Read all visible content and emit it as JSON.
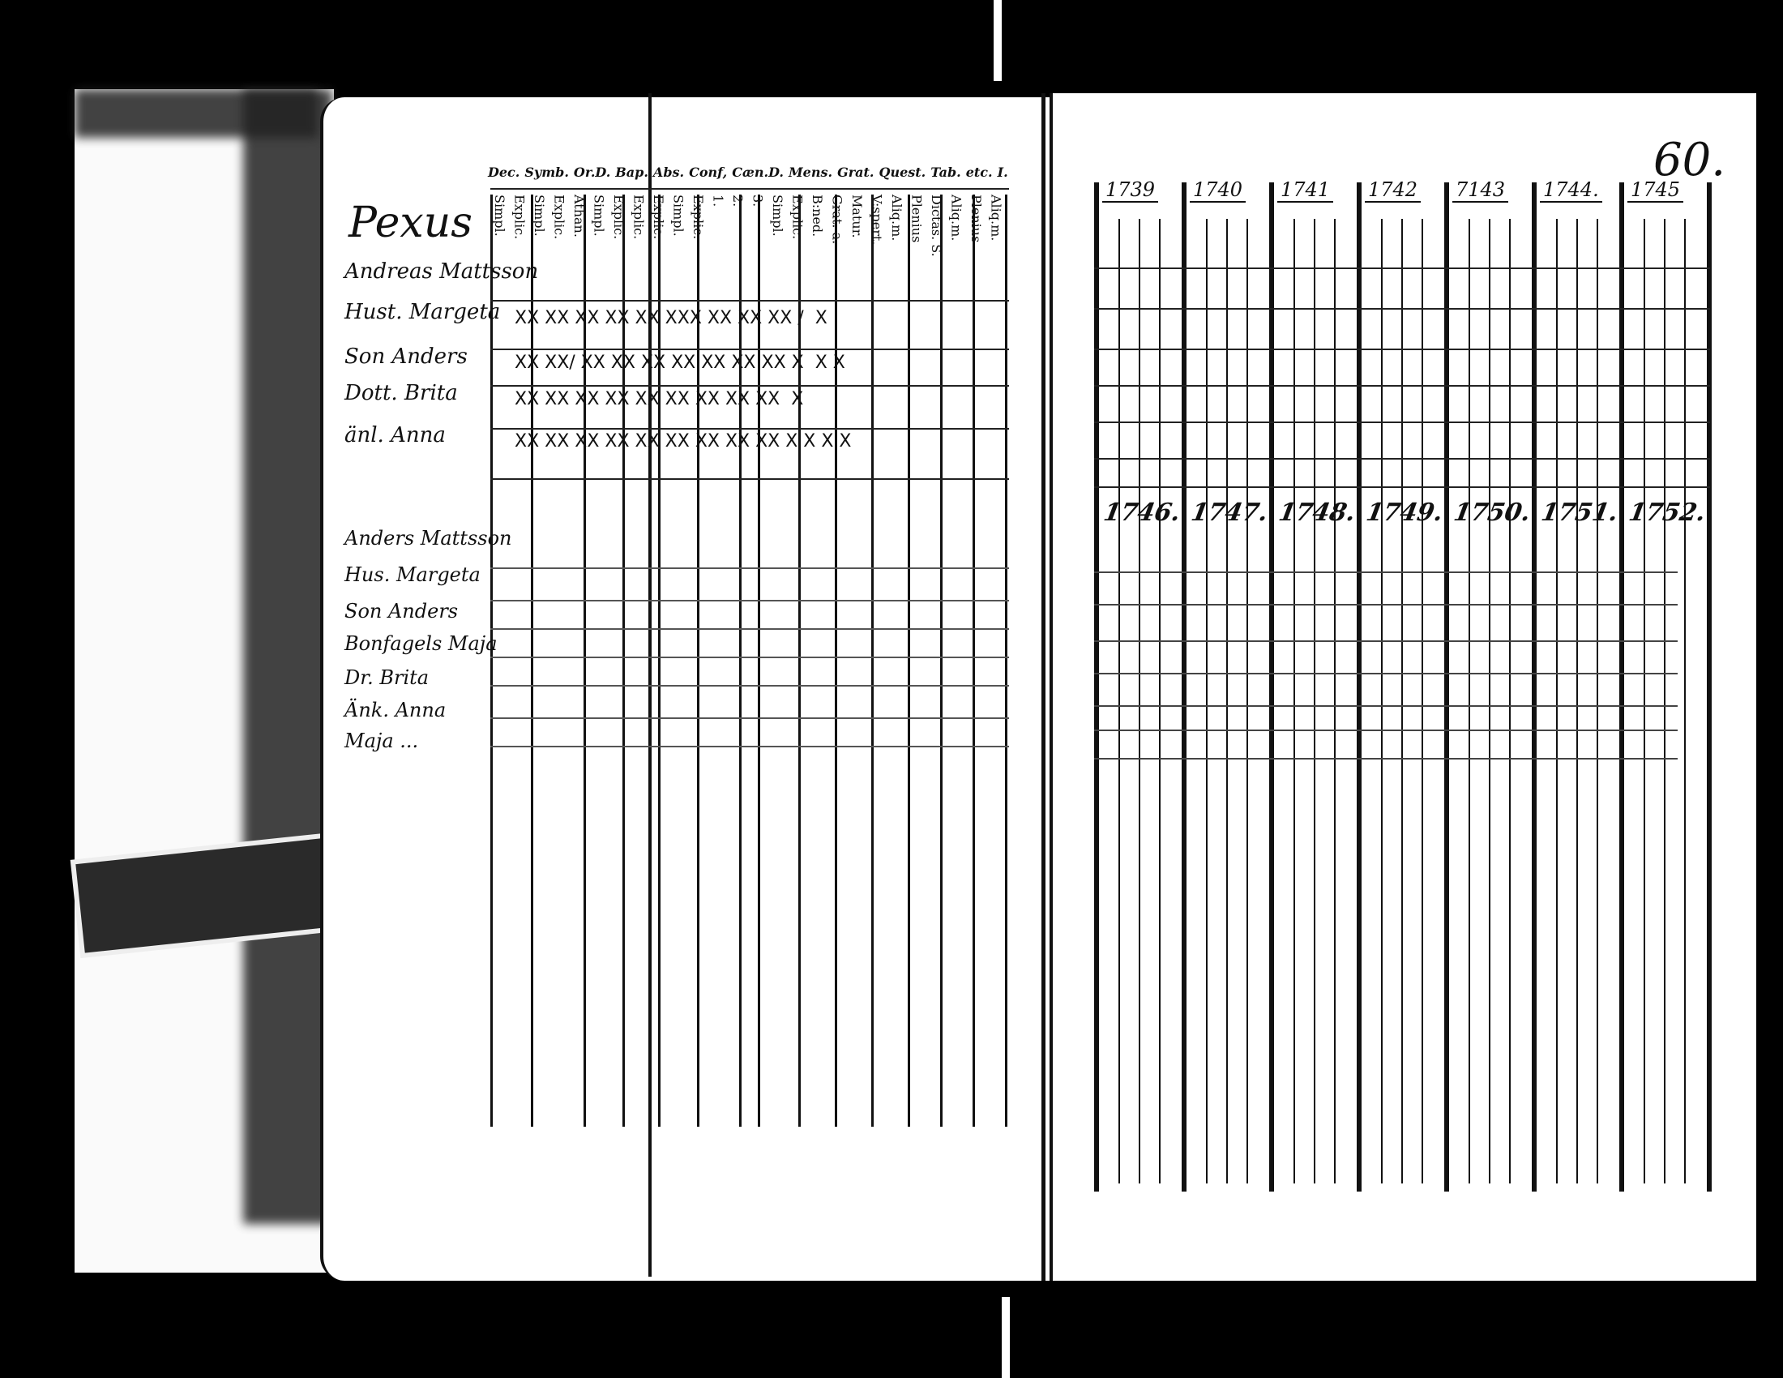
{
  "document": {
    "page_number": "60.",
    "left_page": {
      "household_title": "Pexus",
      "column_headers": [
        "Dec.",
        "Symb.",
        "Or.D.",
        "Bap.",
        "Abs.",
        "Conf,",
        "Cæn.D.",
        "Mens.",
        "Grat.",
        "Quest.",
        "Tab.",
        "etc.",
        "I."
      ],
      "sub_headers": [
        "Simpl.",
        "Explic.",
        "Simpl.",
        "Explic.",
        "Athan.",
        "Simpl.",
        "Explic.",
        "Explic.",
        "Explic.",
        "Simpl.",
        "Explic.",
        "1.",
        "2.",
        "3.",
        "Simpl.",
        "Explic.",
        "B:ned.",
        "Grat. a.",
        "Matur.",
        "V:spert.",
        "Aliq.m.",
        "Plenius",
        "Dictas. S.",
        "Aliq.m.",
        "Plenius",
        "Aliq.m."
      ],
      "group1": [
        {
          "name": "Andreas Mattsson",
          "marks": ""
        },
        {
          "name": "Hust. Margeta",
          "marks": "XX XX XX XX XX XXX XX XX XX /  X"
        },
        {
          "name": "Son Anders",
          "marks": "XX XX/ XX XX XX XX XX XX XX X  X X"
        },
        {
          "name": "Dott. Brita",
          "marks": "XX XX XX XX XX XX XX XX XX  X"
        },
        {
          "name": "änl. Anna",
          "marks": "XX XX XX XX XX XX XX XX XX X X X X"
        }
      ],
      "group2": [
        {
          "name": "Anders Mattsson"
        },
        {
          "name": "Hus. Margeta"
        },
        {
          "name": "Son Anders"
        },
        {
          "name": "Bonfagels Maja"
        },
        {
          "name": "Dr. Brita"
        },
        {
          "name": "Änk. Anna"
        },
        {
          "name": "Maja ..."
        }
      ]
    },
    "right_page": {
      "years_row1": [
        "1739",
        "1740",
        "1741",
        "1742",
        "7143",
        "1744.",
        "1745"
      ],
      "years_row2": [
        "1746.",
        "1747.",
        "1748.",
        "1749.",
        "1750.",
        "1751.",
        "1752."
      ]
    }
  }
}
